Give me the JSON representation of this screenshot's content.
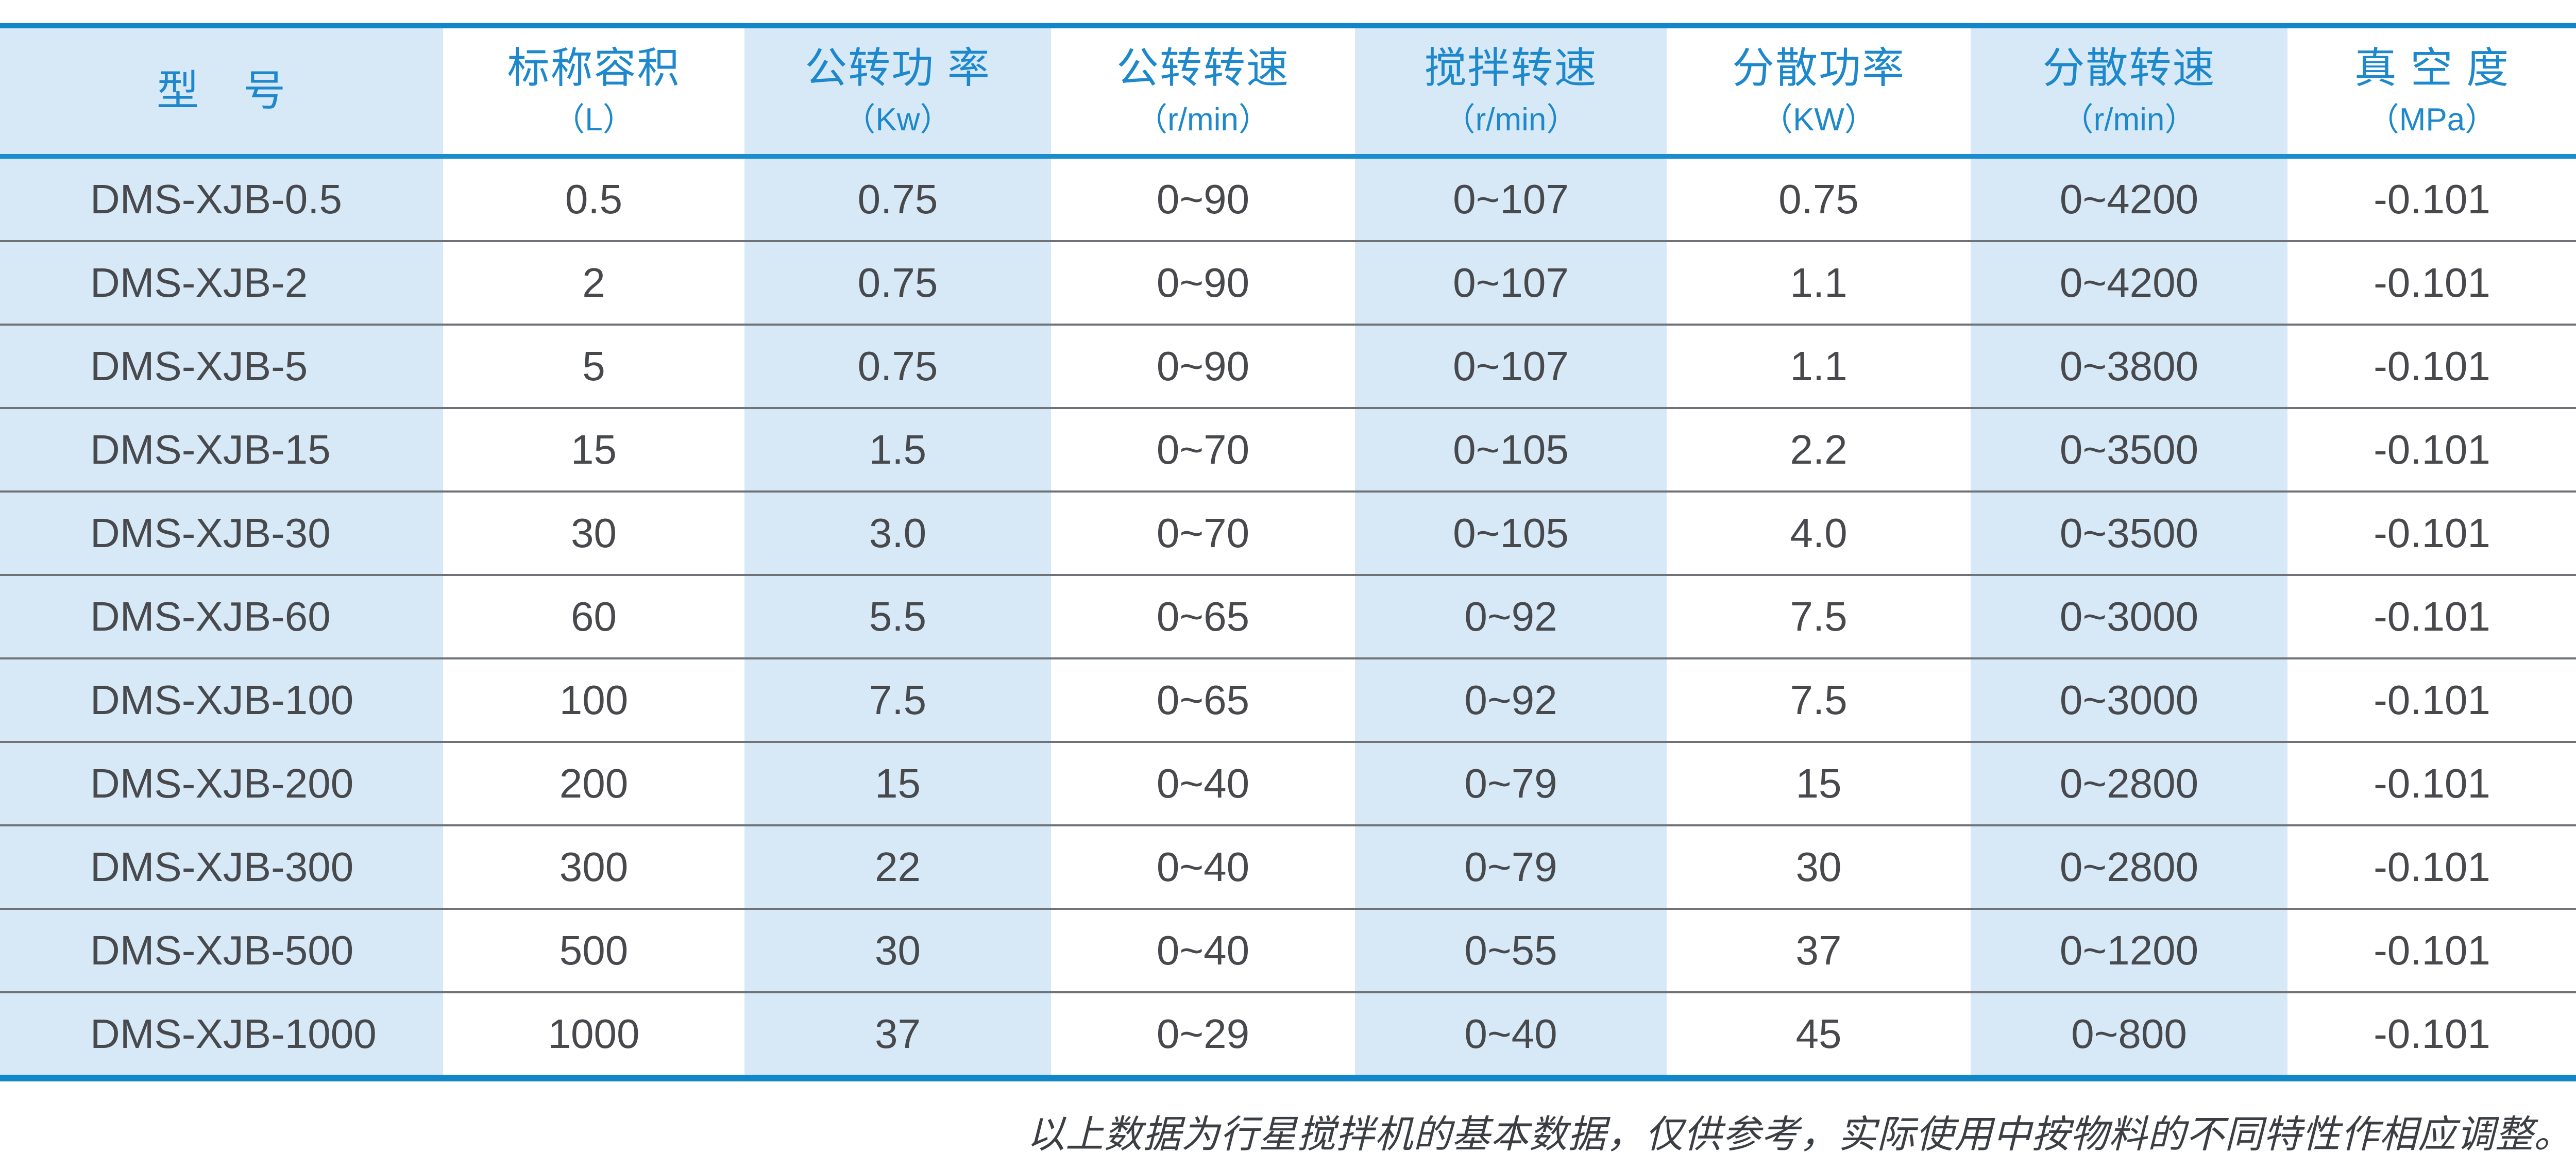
{
  "colors": {
    "accent_blue_border": "#1186c8",
    "header_underline_blue": "#1a8dce",
    "header_text_blue": "#1d88cb",
    "shaded_column_bg": "#d7e9f7",
    "row_separator_gray": "#6f7377",
    "data_text": "#47494d"
  },
  "table": {
    "columns": [
      {
        "label": "型　号",
        "unit": "",
        "shaded": true
      },
      {
        "label": "标称容积",
        "unit": "（L）",
        "shaded": false
      },
      {
        "label": "公转功 率",
        "unit": "（Kw）",
        "shaded": true
      },
      {
        "label": "公转转速",
        "unit": "（r/min）",
        "shaded": false
      },
      {
        "label": "搅拌转速",
        "unit": "（r/min）",
        "shaded": true
      },
      {
        "label": "分散功率",
        "unit": "（KW）",
        "shaded": false
      },
      {
        "label": "分散转速",
        "unit": "（r/min）",
        "shaded": true
      },
      {
        "label": "真 空 度",
        "unit": "（MPa）",
        "shaded": false
      }
    ],
    "rows": [
      [
        "DMS-XJB-0.5",
        "0.5",
        "0.75",
        "0~90",
        "0~107",
        "0.75",
        "0~4200",
        "-0.101"
      ],
      [
        "DMS-XJB-2",
        "2",
        "0.75",
        "0~90",
        "0~107",
        "1.1",
        "0~4200",
        "-0.101"
      ],
      [
        "DMS-XJB-5",
        "5",
        "0.75",
        "0~90",
        "0~107",
        "1.1",
        "0~3800",
        "-0.101"
      ],
      [
        "DMS-XJB-15",
        "15",
        "1.5",
        "0~70",
        "0~105",
        "2.2",
        "0~3500",
        "-0.101"
      ],
      [
        "DMS-XJB-30",
        "30",
        "3.0",
        "0~70",
        "0~105",
        "4.0",
        "0~3500",
        "-0.101"
      ],
      [
        "DMS-XJB-60",
        "60",
        "5.5",
        "0~65",
        "0~92",
        "7.5",
        "0~3000",
        "-0.101"
      ],
      [
        "DMS-XJB-100",
        "100",
        "7.5",
        "0~65",
        "0~92",
        "7.5",
        "0~3000",
        "-0.101"
      ],
      [
        "DMS-XJB-200",
        "200",
        "15",
        "0~40",
        "0~79",
        "15",
        "0~2800",
        "-0.101"
      ],
      [
        "DMS-XJB-300",
        "300",
        "22",
        "0~40",
        "0~79",
        "30",
        "0~2800",
        "-0.101"
      ],
      [
        "DMS-XJB-500",
        "500",
        "30",
        "0~40",
        "0~55",
        "37",
        "0~1200",
        "-0.101"
      ],
      [
        "DMS-XJB-1000",
        "1000",
        "37",
        "0~29",
        "0~40",
        "45",
        "0~800",
        "-0.101"
      ]
    ]
  },
  "footer": {
    "note": "以上数据为行星搅拌机的基本数据，仅供参考，实际使用中按物料的不同特性作相应调整。"
  }
}
